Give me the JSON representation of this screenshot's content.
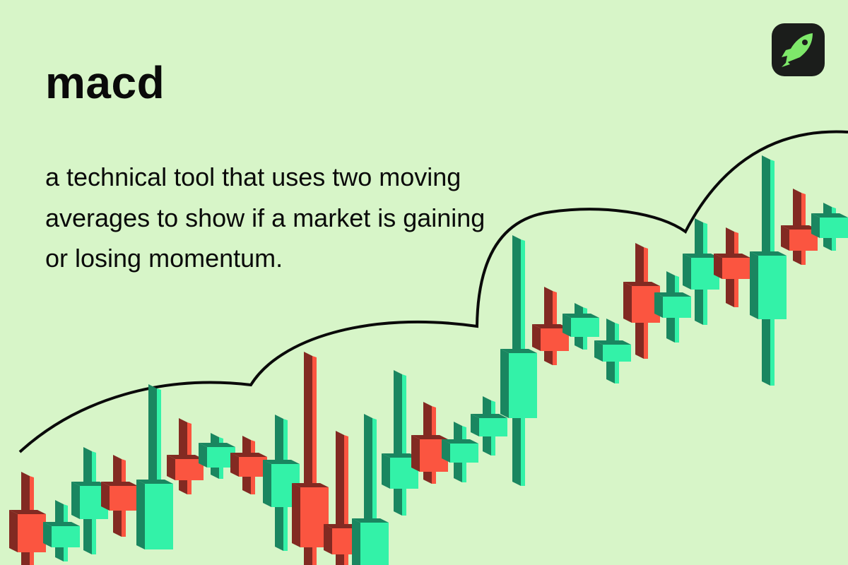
{
  "title": "macd",
  "description": "a technical tool that uses two moving averages to show if a market is gaining or losing momentum.",
  "logo": {
    "icon": "rocket-icon",
    "background": "#1b1d1b",
    "color": "#7ee86a"
  },
  "colors": {
    "background": "#d7f5c8",
    "bullish_front": "#33f2a8",
    "bullish_side": "#1a8660",
    "bearish_front": "#fb5540",
    "bearish_side": "#822a22",
    "trend_line": "#0a0a0a"
  }
}
